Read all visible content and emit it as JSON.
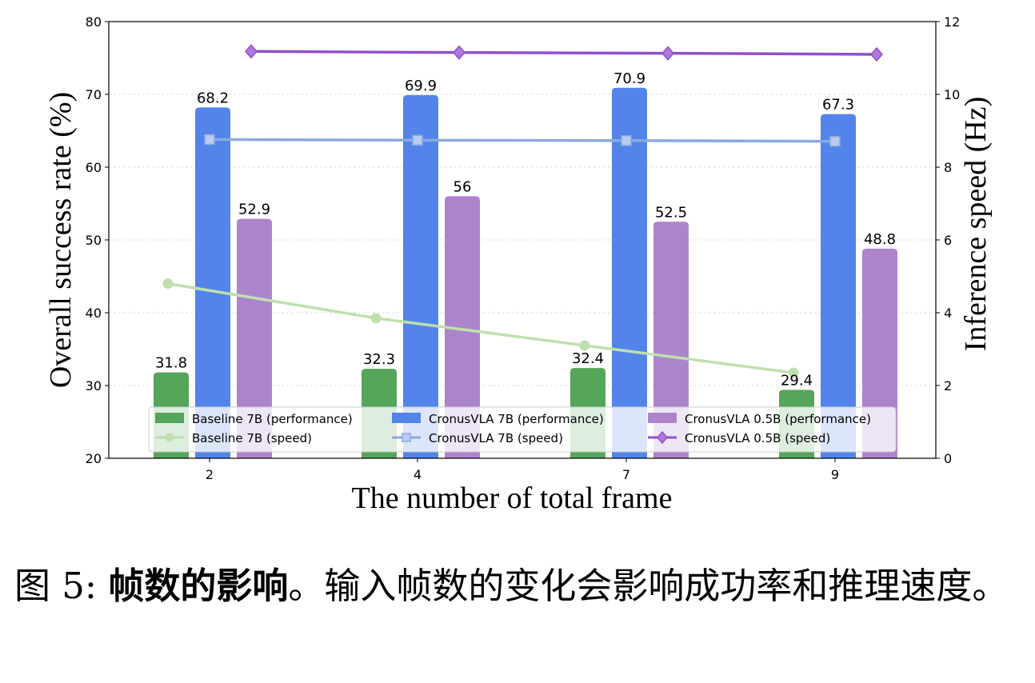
{
  "chart_data": {
    "type": "bar",
    "categories": [
      "2",
      "4",
      "7",
      "9"
    ],
    "xlabel": "The number of total frame",
    "ylabel_left": "Overall success rate (%)",
    "ylabel_right": "Inference speed  (Hz)",
    "ylim_left": [
      20,
      80
    ],
    "ylim_right": [
      0,
      12
    ],
    "yticks_left": [
      "20",
      "30",
      "40",
      "50",
      "60",
      "70",
      "80"
    ],
    "yticks_right": [
      "0",
      "2",
      "4",
      "6",
      "8",
      "10",
      "12"
    ],
    "grid": "horizontal dashed",
    "legend_placement": "lower center",
    "bar_series": [
      {
        "name": "Baseline 7B (performance)",
        "color": "#55a55a",
        "values": [
          31.8,
          32.3,
          32.4,
          29.4
        ],
        "labels": [
          "31.8",
          "32.3",
          "32.4",
          "29.4"
        ]
      },
      {
        "name": "CronusVLA 7B (performance)",
        "color": "#5384ea",
        "values": [
          68.2,
          69.9,
          70.9,
          67.3
        ],
        "labels": [
          "68.2",
          "69.9",
          "70.9",
          "67.3"
        ]
      },
      {
        "name": "CronusVLA 0.5B (performance)",
        "color": "#ad84cc",
        "values": [
          52.9,
          56,
          52.5,
          48.8
        ],
        "labels": [
          "52.9",
          "56",
          "52.5",
          "48.8"
        ]
      }
    ],
    "line_series": [
      {
        "name": "Baseline 7B (speed)",
        "color": "#bfe0ae",
        "marker": "circle",
        "values": [
          4.8,
          3.85,
          3.1,
          2.35
        ]
      },
      {
        "name": "CronusVLA 7B (speed)",
        "color": "#8aaae0",
        "marker": "square",
        "values": [
          8.76,
          8.74,
          8.73,
          8.71
        ]
      },
      {
        "name": "CronusVLA 0.5B (speed)",
        "color": "#9150cc",
        "marker": "diamond",
        "values": [
          11.18,
          11.15,
          11.13,
          11.1
        ]
      }
    ]
  },
  "caption": {
    "figure_label": "图 5: ",
    "bold_title": "帧数的影响",
    "text": "。输入帧数的变化会影响成功率和推理速度。"
  }
}
